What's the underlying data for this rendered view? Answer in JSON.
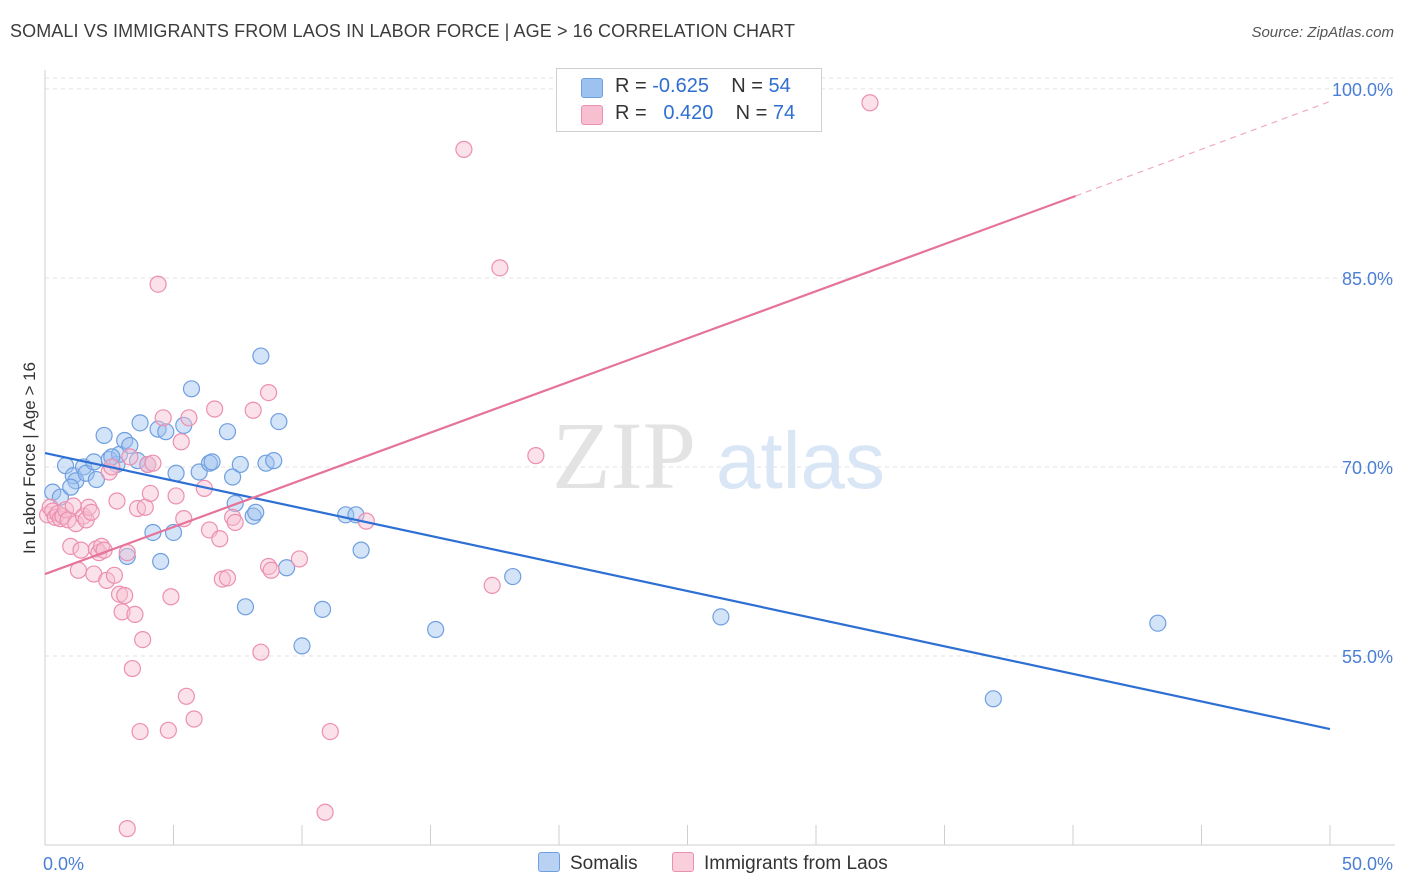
{
  "title": "SOMALI VS IMMIGRANTS FROM LAOS IN LABOR FORCE | AGE > 16 CORRELATION CHART",
  "source": "Source: ZipAtlas.com",
  "watermark": {
    "zip": "ZIP",
    "atlas": "atlas"
  },
  "legend": {
    "rows": [
      {
        "r_label": "R =",
        "r_value": "-0.625",
        "n_label": "N =",
        "n_value": "54",
        "color": "#9ec2f0",
        "border": "#6f9fe0"
      },
      {
        "r_label": "R =",
        "r_value": "0.420",
        "n_label": "N =",
        "n_value": "74",
        "color": "#f7bfd0",
        "border": "#ec8fb0"
      }
    ]
  },
  "bottom_legend": [
    {
      "label": "Somalis",
      "color": "#b9d2f4",
      "border": "#6f9fe0"
    },
    {
      "label": "Immigrants from Laos",
      "color": "#f9cfdc",
      "border": "#ec8fb0"
    }
  ],
  "chart_data": {
    "type": "scatter",
    "xlabel": "",
    "ylabel": "In Labor Force | Age > 16",
    "xlim": [
      0,
      50
    ],
    "ylim": [
      40,
      101.5
    ],
    "x_tick_labels": [
      "0.0%",
      "50.0%"
    ],
    "y_ticks": [
      55,
      70,
      85,
      100
    ],
    "y_tick_labels": [
      "55.0%",
      "70.0%",
      "85.0%",
      "100.0%"
    ],
    "grid": true,
    "series": [
      {
        "name": "Somalis",
        "color": "#6f9fe0",
        "fill": "rgba(158,194,240,0.45)",
        "trend": {
          "x0": 0,
          "y0": 71.1,
          "x1": 50,
          "y1": 49.2,
          "color": "#2e6fd4"
        },
        "points": [
          [
            0.3,
            68.0
          ],
          [
            0.6,
            67.6
          ],
          [
            0.8,
            70.1
          ],
          [
            1.1,
            69.3
          ],
          [
            1.2,
            68.9
          ],
          [
            1.5,
            70.0
          ],
          [
            1.6,
            69.5
          ],
          [
            1.9,
            70.4
          ],
          [
            2.0,
            69.0
          ],
          [
            2.3,
            72.5
          ],
          [
            2.5,
            70.6
          ],
          [
            2.8,
            70.2
          ],
          [
            2.9,
            71.0
          ],
          [
            3.1,
            72.1
          ],
          [
            3.3,
            71.7
          ],
          [
            3.6,
            70.5
          ],
          [
            3.7,
            73.5
          ],
          [
            4.0,
            70.2
          ],
          [
            4.2,
            64.8
          ],
          [
            4.4,
            73.0
          ],
          [
            4.7,
            72.8
          ],
          [
            5.0,
            64.8
          ],
          [
            5.1,
            69.5
          ],
          [
            5.4,
            73.3
          ],
          [
            5.7,
            76.2
          ],
          [
            6.0,
            69.6
          ],
          [
            6.4,
            70.3
          ],
          [
            6.5,
            70.4
          ],
          [
            7.1,
            72.8
          ],
          [
            7.3,
            69.2
          ],
          [
            7.4,
            67.1
          ],
          [
            7.6,
            70.2
          ],
          [
            7.8,
            58.9
          ],
          [
            8.1,
            66.1
          ],
          [
            8.2,
            66.4
          ],
          [
            8.4,
            78.8
          ],
          [
            8.6,
            70.3
          ],
          [
            8.9,
            70.5
          ],
          [
            9.1,
            73.6
          ],
          [
            9.4,
            62.0
          ],
          [
            10.0,
            55.8
          ],
          [
            10.8,
            58.7
          ],
          [
            11.7,
            66.2
          ],
          [
            12.1,
            66.2
          ],
          [
            12.3,
            63.4
          ],
          [
            4.5,
            62.5
          ],
          [
            3.2,
            62.9
          ],
          [
            15.2,
            57.1
          ],
          [
            18.2,
            61.3
          ],
          [
            26.3,
            58.1
          ],
          [
            36.9,
            51.6
          ],
          [
            43.3,
            57.6
          ],
          [
            1.0,
            68.4
          ],
          [
            2.6,
            70.8
          ]
        ]
      },
      {
        "name": "Immigrants from Laos",
        "color": "#ec8fb0",
        "fill": "rgba(247,191,208,0.45)",
        "trend": {
          "x0": 0,
          "y0": 61.5,
          "x1": 40.1,
          "y1": 91.5,
          "color": "#e5739a",
          "dash_x1": 50,
          "dash_y1": 99.0
        },
        "points": [
          [
            0.1,
            66.2
          ],
          [
            0.2,
            66.8
          ],
          [
            0.3,
            66.5
          ],
          [
            0.4,
            66.0
          ],
          [
            0.5,
            66.3
          ],
          [
            0.6,
            65.9
          ],
          [
            0.7,
            66.1
          ],
          [
            0.8,
            66.6
          ],
          [
            0.9,
            65.8
          ],
          [
            1.0,
            63.7
          ],
          [
            1.1,
            66.9
          ],
          [
            1.2,
            65.5
          ],
          [
            1.3,
            61.8
          ],
          [
            1.4,
            63.4
          ],
          [
            1.5,
            66.1
          ],
          [
            1.6,
            65.8
          ],
          [
            1.7,
            66.8
          ],
          [
            1.8,
            66.4
          ],
          [
            1.9,
            61.5
          ],
          [
            2.0,
            63.5
          ],
          [
            2.1,
            63.2
          ],
          [
            2.2,
            63.7
          ],
          [
            2.3,
            63.4
          ],
          [
            2.4,
            61.0
          ],
          [
            2.5,
            69.6
          ],
          [
            2.6,
            70.0
          ],
          [
            2.7,
            61.4
          ],
          [
            2.8,
            67.3
          ],
          [
            2.9,
            59.9
          ],
          [
            3.0,
            58.5
          ],
          [
            3.1,
            59.8
          ],
          [
            3.2,
            63.2
          ],
          [
            3.3,
            70.8
          ],
          [
            3.4,
            54.0
          ],
          [
            3.5,
            58.3
          ],
          [
            3.6,
            66.7
          ],
          [
            3.7,
            49.0
          ],
          [
            3.8,
            56.3
          ],
          [
            3.9,
            66.8
          ],
          [
            4.0,
            70.2
          ],
          [
            4.1,
            67.9
          ],
          [
            4.2,
            70.3
          ],
          [
            4.4,
            84.5
          ],
          [
            4.6,
            73.9
          ],
          [
            4.8,
            49.1
          ],
          [
            4.9,
            59.7
          ],
          [
            5.1,
            67.7
          ],
          [
            5.3,
            72.0
          ],
          [
            5.4,
            65.9
          ],
          [
            5.5,
            51.8
          ],
          [
            5.6,
            73.9
          ],
          [
            5.8,
            50.0
          ],
          [
            6.2,
            68.3
          ],
          [
            6.4,
            65.0
          ],
          [
            6.6,
            74.6
          ],
          [
            6.8,
            64.3
          ],
          [
            6.9,
            61.1
          ],
          [
            7.1,
            61.2
          ],
          [
            7.3,
            66.0
          ],
          [
            7.4,
            65.6
          ],
          [
            8.1,
            74.5
          ],
          [
            8.4,
            55.3
          ],
          [
            8.7,
            75.9
          ],
          [
            8.7,
            62.1
          ],
          [
            8.8,
            61.8
          ],
          [
            9.9,
            62.7
          ],
          [
            10.9,
            42.6
          ],
          [
            11.1,
            49.0
          ],
          [
            12.5,
            65.7
          ],
          [
            16.3,
            95.2
          ],
          [
            17.4,
            60.6
          ],
          [
            17.7,
            85.8
          ],
          [
            19.1,
            70.9
          ],
          [
            32.1,
            98.9
          ]
        ]
      }
    ],
    "extra_low_point": [
      3.2,
      41.3
    ]
  }
}
